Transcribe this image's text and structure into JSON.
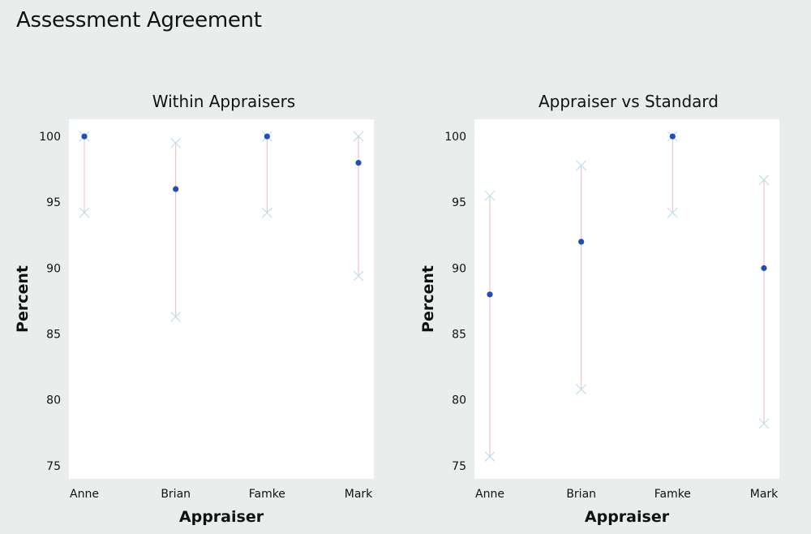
{
  "title": "Assessment Agreement",
  "colors": {
    "point": "#1f4fbf",
    "interval": "#f2b7b7",
    "bound_marker": "#bfe0ec",
    "background": "#e9eeec"
  },
  "chart_data": [
    {
      "type": "scatter",
      "title": "Within Appraisers",
      "xlabel": "Appraiser",
      "ylabel": "Percent",
      "ylim": [
        74,
        101.3
      ],
      "yticks": [
        75,
        80,
        85,
        90,
        95,
        100
      ],
      "categories": [
        "Anne",
        "Brian",
        "Famke",
        "Mark"
      ],
      "values": [
        100,
        96,
        100,
        98
      ],
      "lower": [
        94.2,
        86.3,
        94.2,
        89.4
      ],
      "upper": [
        100,
        99.5,
        100,
        100
      ],
      "legend": "none"
    },
    {
      "type": "scatter",
      "title": "Appraiser vs Standard",
      "xlabel": "Appraiser",
      "ylabel": "Percent",
      "ylim": [
        74,
        101.3
      ],
      "yticks": [
        75,
        80,
        85,
        90,
        95,
        100
      ],
      "categories": [
        "Anne",
        "Brian",
        "Famke",
        "Mark"
      ],
      "values": [
        88,
        92,
        100,
        90
      ],
      "lower": [
        75.7,
        80.8,
        94.2,
        78.2
      ],
      "upper": [
        95.5,
        97.8,
        100,
        96.7
      ],
      "legend": "none"
    }
  ]
}
